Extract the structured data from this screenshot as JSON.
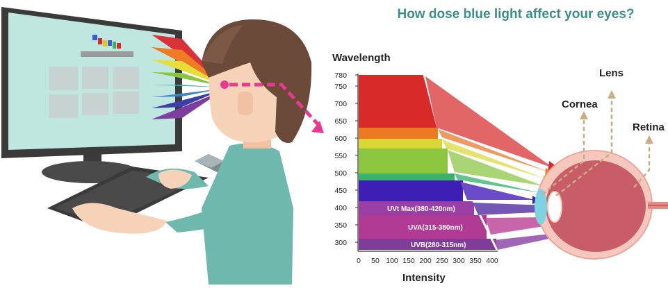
{
  "title": "How dose blue light affect your eyes?",
  "chart": {
    "y_title": "Wavelength",
    "x_title": "Intensity",
    "y_ticks": [
      "780",
      "750",
      "700",
      "650",
      "600",
      "550",
      "500",
      "450",
      "400",
      "350",
      "300"
    ],
    "x_ticks": [
      "0",
      "50",
      "100",
      "150",
      "200",
      "250",
      "300",
      "350",
      "400"
    ],
    "bands": [
      {
        "label": "",
        "color": "#d92a2a"
      },
      {
        "label": "",
        "color": "#ec7a22"
      },
      {
        "label": "",
        "color": "#d9d735"
      },
      {
        "label": "",
        "color": "#8cc63f"
      },
      {
        "label": "",
        "color": "#3bb26a"
      },
      {
        "label": "",
        "color": "#3d1fb5"
      },
      {
        "label": "UVt Max(380-420nm)",
        "color": "#9a3fa6"
      },
      {
        "label": "UVA(315-380nm)",
        "color": "#b03a94"
      },
      {
        "label": "UVB(280-315nm)",
        "color": "#7d3d98"
      }
    ]
  },
  "eye_labels": {
    "lens": "Lens",
    "cornea": "Cornea",
    "retina": "Retina"
  },
  "colors": {
    "title": "#3a8f88",
    "monitor_screen": "#bfe6df",
    "shirt": "#6fb8ad",
    "hair": "#6b4a3a",
    "skin": "#f6d2b8",
    "eye_sclera": "#f0b3a8",
    "eye_inner": "#c2555f"
  }
}
